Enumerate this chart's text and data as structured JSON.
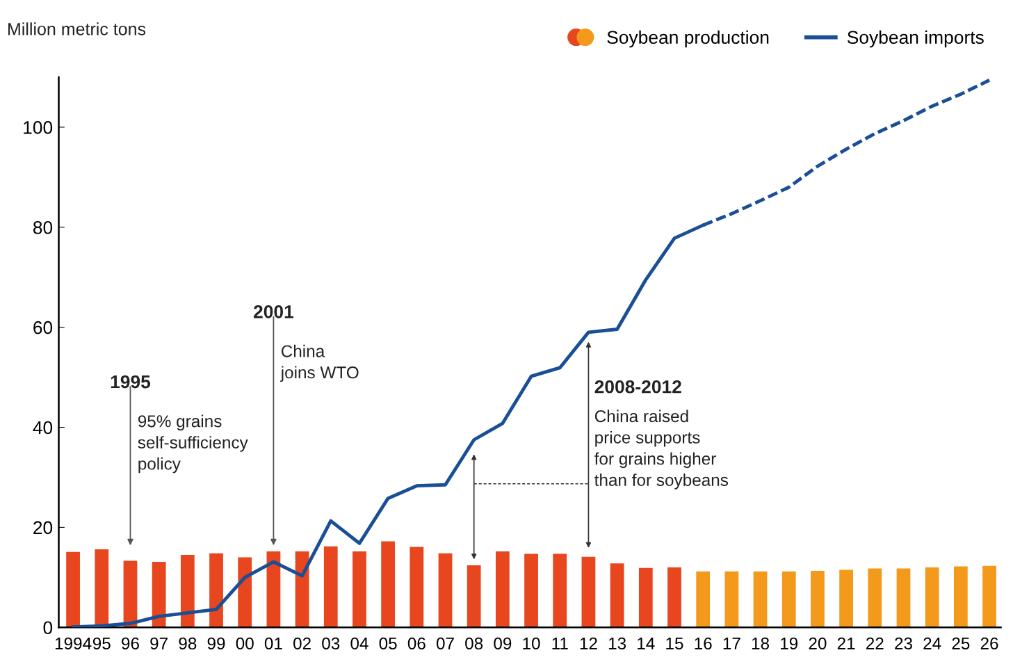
{
  "chart_data": {
    "type": "bar",
    "ylabel": "Million metric tons",
    "categories": [
      "1994",
      "95",
      "96",
      "97",
      "98",
      "99",
      "00",
      "01",
      "02",
      "03",
      "04",
      "05",
      "06",
      "07",
      "08",
      "09",
      "10",
      "11",
      "12",
      "13",
      "14",
      "15",
      "16",
      "17",
      "18",
      "19",
      "20",
      "21",
      "22",
      "23",
      "24",
      "25",
      "26"
    ],
    "series": [
      {
        "name": "Soybean production",
        "colors": [
          "#e8461e",
          "#e8461e",
          "#e8461e",
          "#e8461e",
          "#e8461e",
          "#e8461e",
          "#e8461e",
          "#e8461e",
          "#e8461e",
          "#e8461e",
          "#e8461e",
          "#e8461e",
          "#e8461e",
          "#e8461e",
          "#e8461e",
          "#e8461e",
          "#e8461e",
          "#e8461e",
          "#e8461e",
          "#e8461e",
          "#e8461e",
          "#e8461e",
          "#f39a1c",
          "#f39a1c",
          "#f39a1c",
          "#f39a1c",
          "#f39a1c",
          "#f39a1c",
          "#f39a1c",
          "#f39a1c",
          "#f39a1c",
          "#f39a1c",
          "#f39a1c"
        ],
        "values": [
          15.1,
          15.6,
          13.3,
          13.1,
          14.5,
          14.8,
          14.0,
          15.2,
          15.2,
          16.2,
          15.2,
          17.2,
          16.1,
          14.8,
          12.4,
          15.2,
          14.7,
          14.7,
          14.1,
          12.8,
          11.9,
          12.0,
          11.2,
          11.2,
          11.2,
          11.2,
          11.3,
          11.5,
          11.8,
          11.8,
          12.0,
          12.2,
          12.3
        ]
      },
      {
        "name": "Soybean imports",
        "type": "line",
        "color": "#1a4f96",
        "line_style": "solid",
        "values": [
          0.1,
          0.3,
          0.8,
          2.2,
          2.9,
          3.6,
          10.0,
          13.1,
          10.3,
          21.3,
          16.8,
          25.8,
          28.3,
          28.5,
          37.5,
          40.8,
          50.2,
          51.9,
          59.0,
          59.6,
          69.5,
          77.8,
          80.4,
          null,
          null,
          null,
          null,
          null,
          null,
          null,
          null,
          null,
          null
        ]
      },
      {
        "type": "line",
        "color": "#1a4f96",
        "line_style": "dashed",
        "values": [
          null,
          null,
          null,
          null,
          null,
          null,
          null,
          null,
          null,
          null,
          null,
          null,
          null,
          null,
          null,
          null,
          null,
          null,
          null,
          null,
          null,
          null,
          80.4,
          82.7,
          85.3,
          88.0,
          92.2,
          95.6,
          98.7,
          101.3,
          104.2,
          106.6,
          109.4
        ]
      }
    ],
    "ylim": [
      0,
      110
    ],
    "yticks": [
      0,
      20,
      40,
      60,
      80,
      100
    ],
    "grid": false,
    "legend": "top right",
    "annotations": [
      "1995",
      "95% grains\nself-sufficiency\npolicy",
      "2001",
      "China\njoins WTO",
      "2008-2012",
      "China raised\nprice supports\nfor grains higher\nthan for soybeans"
    ]
  }
}
